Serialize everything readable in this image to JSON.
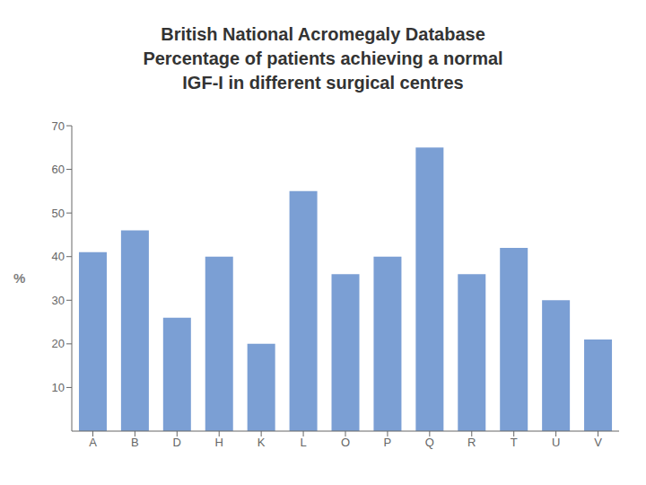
{
  "chart_data": {
    "type": "bar",
    "title": "British National Acromegaly Database\nPercentage of patients achieving a normal\nIGF-I in different surgical centres",
    "categories": [
      "A",
      "B",
      "D",
      "H",
      "K",
      "L",
      "O",
      "P",
      "Q",
      "R",
      "T",
      "U",
      "V"
    ],
    "values": [
      41,
      46,
      26,
      40,
      20,
      55,
      36,
      40,
      65,
      36,
      42,
      30,
      21
    ],
    "color": "#7B9FD4",
    "ylabel": "%",
    "ylim": [
      0,
      70
    ],
    "yticks": [
      10,
      20,
      30,
      40,
      50,
      60,
      70
    ],
    "grid": false
  }
}
